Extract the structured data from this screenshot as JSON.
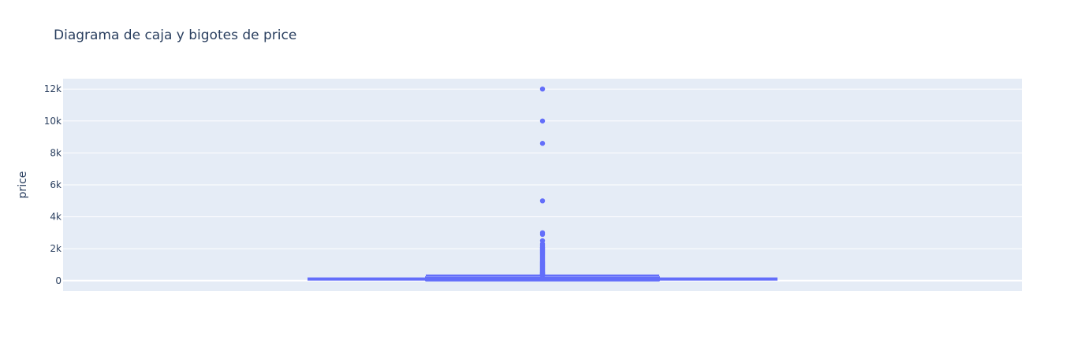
{
  "chart_data": {
    "type": "box",
    "title": "Diagrama de caja y bigotes de price",
    "xlabel": "",
    "ylabel": "price",
    "ylim": [
      -650,
      12650
    ],
    "y_ticks": [
      0,
      2000,
      4000,
      6000,
      8000,
      10000,
      12000
    ],
    "y_tick_labels": [
      "0",
      "2k",
      "4k",
      "6k",
      "8k",
      "10k",
      "12k"
    ],
    "grid": true,
    "colors": {
      "plot_bg": "#e5ecf6",
      "grid": "#ffffff",
      "box": "#636efa",
      "text": "#2a3f5f"
    },
    "series": [
      {
        "name": "price",
        "stats": {
          "lowerfence": 0,
          "q1": 69,
          "median": 105,
          "q3": 175,
          "upperfence": 334
        },
        "outliers": [
          340,
          360,
          380,
          400,
          420,
          450,
          480,
          500,
          550,
          600,
          650,
          700,
          750,
          800,
          850,
          900,
          950,
          1000,
          1050,
          1100,
          1150,
          1200,
          1250,
          1300,
          1350,
          1400,
          1450,
          1500,
          1550,
          1600,
          1650,
          1700,
          1750,
          1800,
          1850,
          1900,
          1950,
          2000,
          2050,
          2100,
          2200,
          2300,
          2500,
          2900,
          3000,
          5000,
          8600,
          10000,
          12000
        ]
      }
    ]
  }
}
